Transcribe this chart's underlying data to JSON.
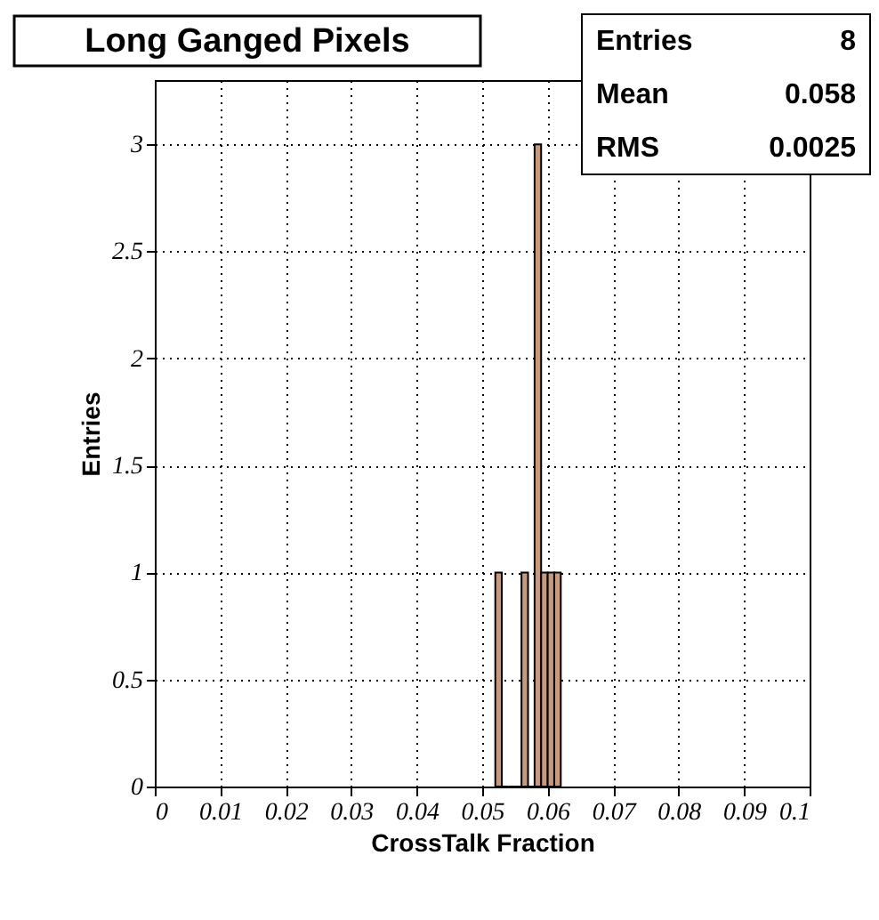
{
  "chart_data": {
    "type": "histogram",
    "title": "Long Ganged Pixels",
    "xlabel": "CrossTalk Fraction",
    "ylabel": "Entries",
    "bins": [
      0.052,
      0.053,
      0.054,
      0.055,
      0.056,
      0.057,
      0.058,
      0.059,
      0.06,
      0.061,
      0.062
    ],
    "values": [
      1,
      0,
      0,
      0,
      1,
      0,
      3,
      1,
      1,
      1
    ],
    "color": "#c8997a",
    "xlim": [
      0,
      0.1
    ],
    "xticks": [
      0,
      0.01,
      0.02,
      0.03,
      0.04,
      0.05,
      0.06,
      0.07,
      0.08,
      0.09,
      0.1
    ],
    "ylim": [
      0,
      3.3
    ],
    "yticks": [
      0,
      0.5,
      1,
      1.5,
      2,
      2.5,
      3
    ],
    "grid": true,
    "annotations": [
      "Entries 8",
      "Mean 0.058",
      "RMS 0.0025"
    ]
  }
}
